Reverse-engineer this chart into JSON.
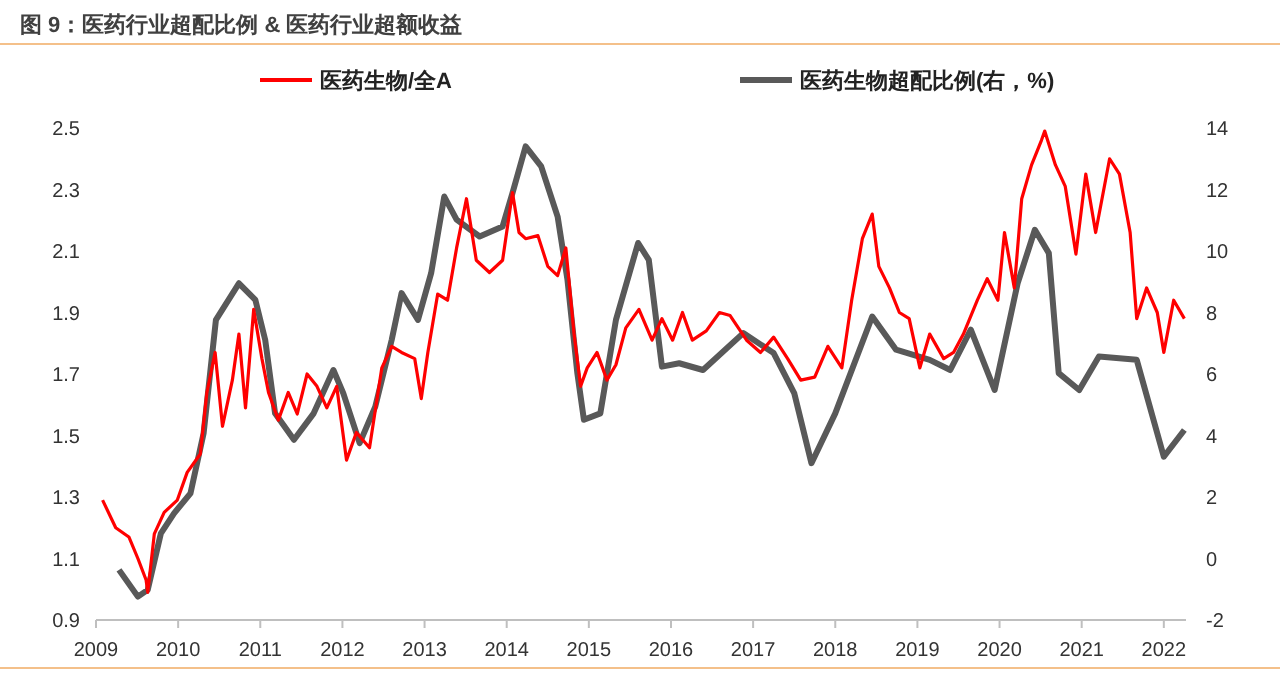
{
  "chart_data": {
    "type": "line",
    "title": "图 9：医药行业超配比例 & 医药行业超额收益",
    "xlim": [
      2009,
      2022.27
    ],
    "xticks": [
      2009,
      2010,
      2011,
      2012,
      2013,
      2014,
      2015,
      2016,
      2017,
      2018,
      2019,
      2020,
      2021,
      2022
    ],
    "ylim": [
      0.9,
      2.5
    ],
    "yticks": [
      0.9,
      1.1,
      1.3,
      1.5,
      1.7,
      1.9,
      2.1,
      2.3,
      2.5
    ],
    "y2lim": [
      -2,
      14
    ],
    "y2ticks": [
      -2,
      0,
      2,
      4,
      6,
      8,
      10,
      12,
      14
    ],
    "grid": false,
    "legend": "top",
    "series": [
      {
        "name": "医药生物/全A",
        "color": "#ff0000",
        "x": [
          2009.08,
          2009.24,
          2009.4,
          2009.51,
          2009.61,
          2009.63,
          2009.71,
          2009.83,
          2009.99,
          2010.11,
          2010.27,
          2010.35,
          2010.45,
          2010.54,
          2010.66,
          2010.74,
          2010.82,
          2010.92,
          2011.02,
          2011.1,
          2011.22,
          2011.34,
          2011.45,
          2011.57,
          2011.69,
          2011.81,
          2011.93,
          2012.05,
          2012.17,
          2012.33,
          2012.48,
          2012.6,
          2012.72,
          2012.88,
          2012.96,
          2013.04,
          2013.16,
          2013.28,
          2013.39,
          2013.51,
          2013.63,
          2013.79,
          2013.95,
          2014.07,
          2014.15,
          2014.23,
          2014.38,
          2014.5,
          2014.62,
          2014.72,
          2014.82,
          2014.9,
          2014.98,
          2015.1,
          2015.22,
          2015.33,
          2015.45,
          2015.61,
          2015.77,
          2015.89,
          2016.02,
          2016.14,
          2016.26,
          2016.43,
          2016.59,
          2016.72,
          2016.92,
          2017.09,
          2017.25,
          2017.42,
          2017.58,
          2017.75,
          2017.91,
          2018.08,
          2018.2,
          2018.33,
          2018.45,
          2018.53,
          2018.66,
          2018.78,
          2018.9,
          2019.03,
          2019.15,
          2019.32,
          2019.44,
          2019.56,
          2019.73,
          2019.85,
          2019.98,
          2020.06,
          2020.18,
          2020.27,
          2020.39,
          2020.51,
          2020.55,
          2020.68,
          2020.8,
          2020.93,
          2021.05,
          2021.17,
          2021.34,
          2021.46,
          2021.59,
          2021.67,
          2021.79,
          2021.92,
          2022.0,
          2022.12,
          2022.25
        ],
        "values": [
          1.29,
          1.2,
          1.17,
          1.1,
          1.03,
          0.99,
          1.18,
          1.25,
          1.29,
          1.38,
          1.44,
          1.64,
          1.77,
          1.53,
          1.68,
          1.83,
          1.59,
          1.91,
          1.75,
          1.64,
          1.55,
          1.64,
          1.57,
          1.7,
          1.66,
          1.59,
          1.66,
          1.42,
          1.51,
          1.46,
          1.72,
          1.79,
          1.77,
          1.75,
          1.62,
          1.77,
          1.96,
          1.94,
          2.11,
          2.27,
          2.07,
          2.03,
          2.07,
          2.29,
          2.16,
          2.14,
          2.15,
          2.05,
          2.02,
          2.11,
          1.83,
          1.66,
          1.72,
          1.77,
          1.68,
          1.73,
          1.85,
          1.91,
          1.81,
          1.88,
          1.81,
          1.9,
          1.81,
          1.84,
          1.9,
          1.89,
          1.81,
          1.77,
          1.82,
          1.75,
          1.68,
          1.69,
          1.79,
          1.72,
          1.94,
          2.14,
          2.22,
          2.05,
          1.98,
          1.9,
          1.88,
          1.72,
          1.83,
          1.75,
          1.77,
          1.83,
          1.94,
          2.01,
          1.94,
          2.16,
          1.98,
          2.27,
          2.38,
          2.46,
          2.49,
          2.38,
          2.31,
          2.09,
          2.35,
          2.16,
          2.4,
          2.35,
          2.16,
          1.88,
          1.98,
          1.9,
          1.77,
          1.94,
          1.88
        ]
      },
      {
        "name": "医药生物超配比例(右，%)",
        "color": "#595959",
        "axis": "y2",
        "x": [
          2009.28,
          2009.51,
          2009.63,
          2009.79,
          2009.95,
          2010.15,
          2010.31,
          2010.46,
          2010.74,
          2010.94,
          2011.06,
          2011.18,
          2011.41,
          2011.65,
          2011.89,
          2012.01,
          2012.21,
          2012.4,
          2012.6,
          2012.72,
          2012.92,
          2013.08,
          2013.24,
          2013.39,
          2013.67,
          2013.95,
          2014.07,
          2014.23,
          2014.42,
          2014.62,
          2014.74,
          2014.86,
          2014.94,
          2015.14,
          2015.33,
          2015.6,
          2015.73,
          2015.89,
          2016.1,
          2016.39,
          2016.88,
          2017.25,
          2017.5,
          2017.71,
          2018.0,
          2018.45,
          2018.74,
          2019.15,
          2019.4,
          2019.65,
          2019.94,
          2020.22,
          2020.43,
          2020.6,
          2020.72,
          2020.97,
          2021.21,
          2021.67,
          2022.0,
          2022.25
        ],
        "values": [
          -0.37,
          -1.24,
          -1.02,
          0.82,
          1.47,
          2.12,
          4.07,
          7.76,
          8.95,
          8.41,
          7.11,
          4.72,
          3.86,
          4.72,
          6.13,
          5.38,
          3.75,
          4.94,
          7.11,
          8.63,
          7.76,
          9.28,
          11.77,
          11.02,
          10.47,
          10.8,
          11.88,
          13.4,
          12.75,
          11.12,
          9.06,
          6.03,
          4.51,
          4.72,
          7.76,
          10.26,
          9.71,
          6.24,
          6.35,
          6.13,
          7.33,
          6.68,
          5.38,
          3.1,
          4.72,
          7.87,
          6.79,
          6.46,
          6.13,
          7.44,
          5.48,
          8.95,
          10.69,
          9.93,
          6.03,
          5.48,
          6.57,
          6.46,
          3.31,
          4.18
        ]
      }
    ]
  }
}
